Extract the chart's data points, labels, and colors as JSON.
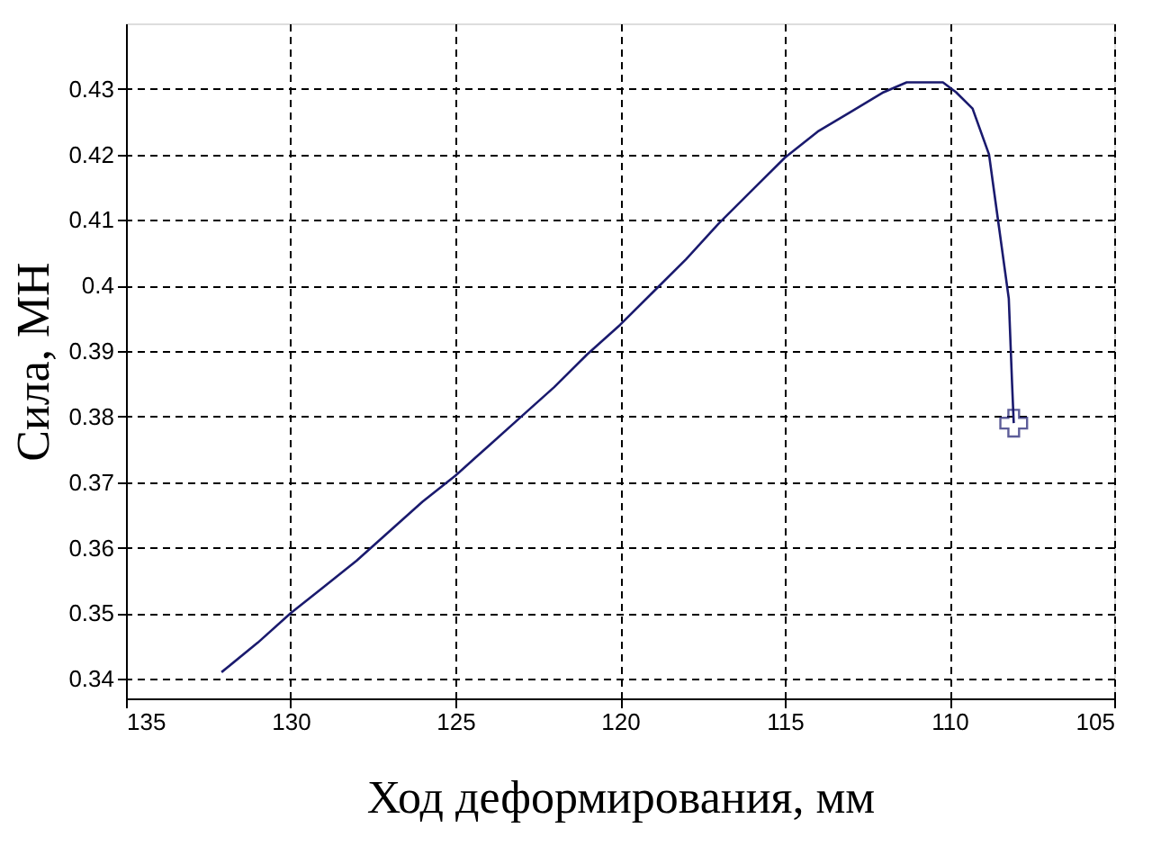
{
  "chart_data": {
    "type": "line",
    "xlabel": "Ход деформирования, мм",
    "ylabel": "Сила, МН",
    "xlim": [
      135,
      105
    ],
    "ylim": [
      0.337,
      0.44
    ],
    "xticks": [
      135,
      130,
      125,
      120,
      115,
      110,
      105
    ],
    "yticks": [
      0.34,
      0.35,
      0.36,
      0.37,
      0.38,
      0.39,
      {
        "value": 0.4,
        "label": "0.4"
      },
      0.41,
      0.42,
      0.43
    ],
    "grid": true,
    "line_style": "solid",
    "series": [
      {
        "color": "#1a1a6e",
        "marker": "none",
        "x": [
          132.1,
          131,
          130,
          129,
          128,
          127,
          126,
          125,
          124,
          123,
          122,
          121,
          120,
          119,
          118,
          117,
          116,
          115,
          114,
          113,
          112,
          111.3,
          110.2,
          109.8,
          109.3,
          108.8,
          108.5,
          108.2,
          108.1,
          108.05
        ],
        "values": [
          0.341,
          0.3455,
          0.35,
          0.354,
          0.358,
          0.3625,
          0.367,
          0.371,
          0.3755,
          0.38,
          0.3845,
          0.3895,
          0.394,
          0.399,
          0.404,
          0.4095,
          0.4145,
          0.4195,
          0.4235,
          0.4265,
          0.4295,
          0.431,
          0.431,
          0.4295,
          0.427,
          0.42,
          0.409,
          0.398,
          0.385,
          0.379
        ]
      },
      {
        "type": "scatter",
        "color": "#1a1a6e",
        "marker": "cross",
        "x": [
          108.05
        ],
        "values": [
          0.379
        ]
      }
    ]
  }
}
